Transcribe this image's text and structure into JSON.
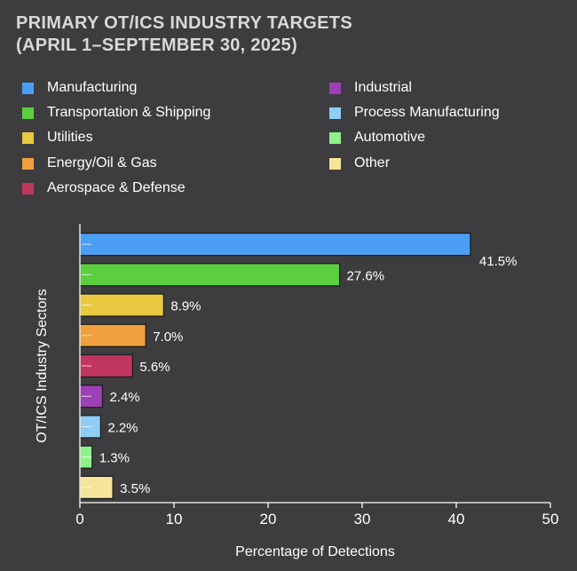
{
  "title_line1": "PRIMARY OT/ICS INDUSTRY TARGETS",
  "title_line2": "(APRIL 1–SEPTEMBER 30, 2025)",
  "colors": {
    "background": "#3d3d3f",
    "axis": "#ffffff",
    "title": "#d9d9d9"
  },
  "chart_data": {
    "type": "bar",
    "orientation": "horizontal",
    "title": "PRIMARY OT/ICS INDUSTRY TARGETS (APRIL 1–SEPTEMBER 30, 2025)",
    "xlabel": "Percentage of Detections",
    "ylabel": "OT/ICS Industry Sectors",
    "xlim": [
      0,
      50
    ],
    "xticks": [
      0,
      10,
      20,
      30,
      40,
      50
    ],
    "grid": false,
    "legend_position": "top",
    "categories": [
      "Manufacturing",
      "Transportation & Shipping",
      "Utilities",
      "Energy/Oil & Gas",
      "Aerospace & Defense",
      "Industrial",
      "Process Manufacturing",
      "Automotive",
      "Other"
    ],
    "values": [
      41.5,
      27.6,
      8.9,
      7.0,
      5.6,
      2.4,
      2.2,
      1.3,
      3.5
    ],
    "value_labels": [
      "41.5%",
      "27.6%",
      "8.9%",
      "7.0%",
      "5.6%",
      "2.4%",
      "2.2%",
      "1.3%",
      "3.5%"
    ],
    "colors": [
      "#4a9ff5",
      "#5ccf3f",
      "#e8c93f",
      "#f0a03c",
      "#c1365f",
      "#9d3fb5",
      "#8ecdf5",
      "#8ff08a",
      "#f5e59a"
    ]
  }
}
